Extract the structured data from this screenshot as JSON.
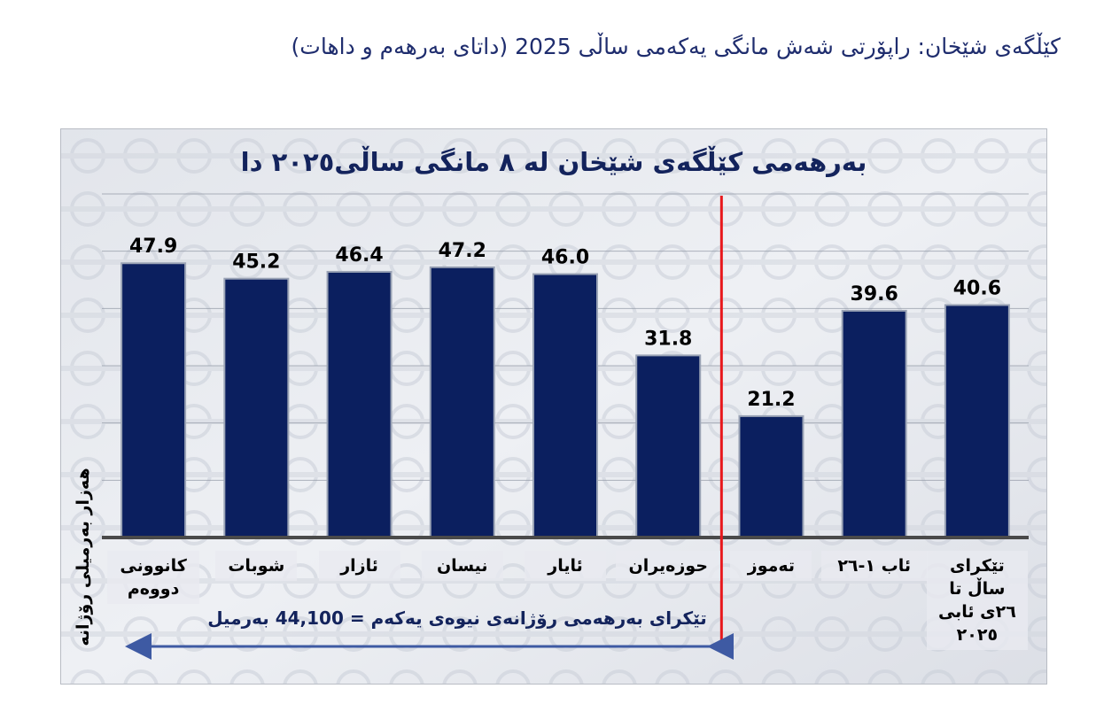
{
  "page": {
    "title": "کێڵگەی شێخان: راپۆرتی شەش مانگی یەکەمی ساڵی 2025 (داتای بەرهەم و داهات)"
  },
  "colors": {
    "bar": "#0b1f5f",
    "divider": "#e8181c",
    "arrow": "#3e5aa3",
    "title": "#13235c"
  },
  "chart_data": {
    "type": "bar",
    "title": "بەرهەمی کێڵگەی شێخان لە ٨ مانگی ساڵی٢٠٢٥ دا",
    "ylabel": "هەزار بەرمیلی رۆژانە",
    "xlabel": "",
    "ylim": [
      0,
      60
    ],
    "grid": true,
    "categories": [
      "کانوونی دووەم",
      "شوبات",
      "ئازار",
      "نیسان",
      "ئایار",
      "حوزەیران",
      "تەموز",
      "ئاب  ١-٢٦",
      "تێکرای ساڵ تا ٢٦ی ئابی ٢٠٢٥"
    ],
    "values": [
      47.9,
      45.2,
      46.4,
      47.2,
      46.0,
      31.8,
      21.2,
      39.6,
      40.6
    ],
    "value_labels": [
      "47.9",
      "45.2",
      "46.4",
      "47.2",
      "46.0",
      "31.8",
      "21.2",
      "39.6",
      "40.6"
    ],
    "annotation": "تێکرای بەرهەمی رۆژانەی نیوەی  یەکەم = 44,100 بەرمیل",
    "divider_after_category": 5
  }
}
